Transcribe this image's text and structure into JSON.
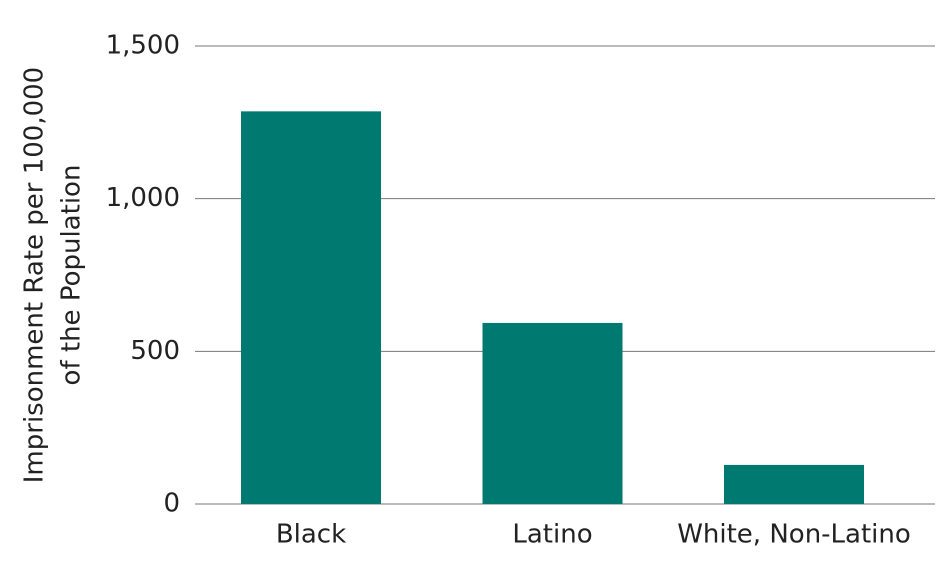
{
  "chart_data": {
    "type": "bar",
    "ylabel": [
      "Imprisonment Rate per 100,000",
      "of the Population"
    ],
    "categories": [
      "Black",
      "Latino",
      "White, Non-Latino"
    ],
    "values": [
      1286,
      593,
      128
    ],
    "color": "#007a70",
    "ylim": [
      0,
      1500
    ],
    "yticks": [
      0,
      500,
      {
        "value": 1000,
        "label": "1,000"
      },
      {
        "value": 1500,
        "label": "1,500"
      }
    ],
    "grid": true
  }
}
